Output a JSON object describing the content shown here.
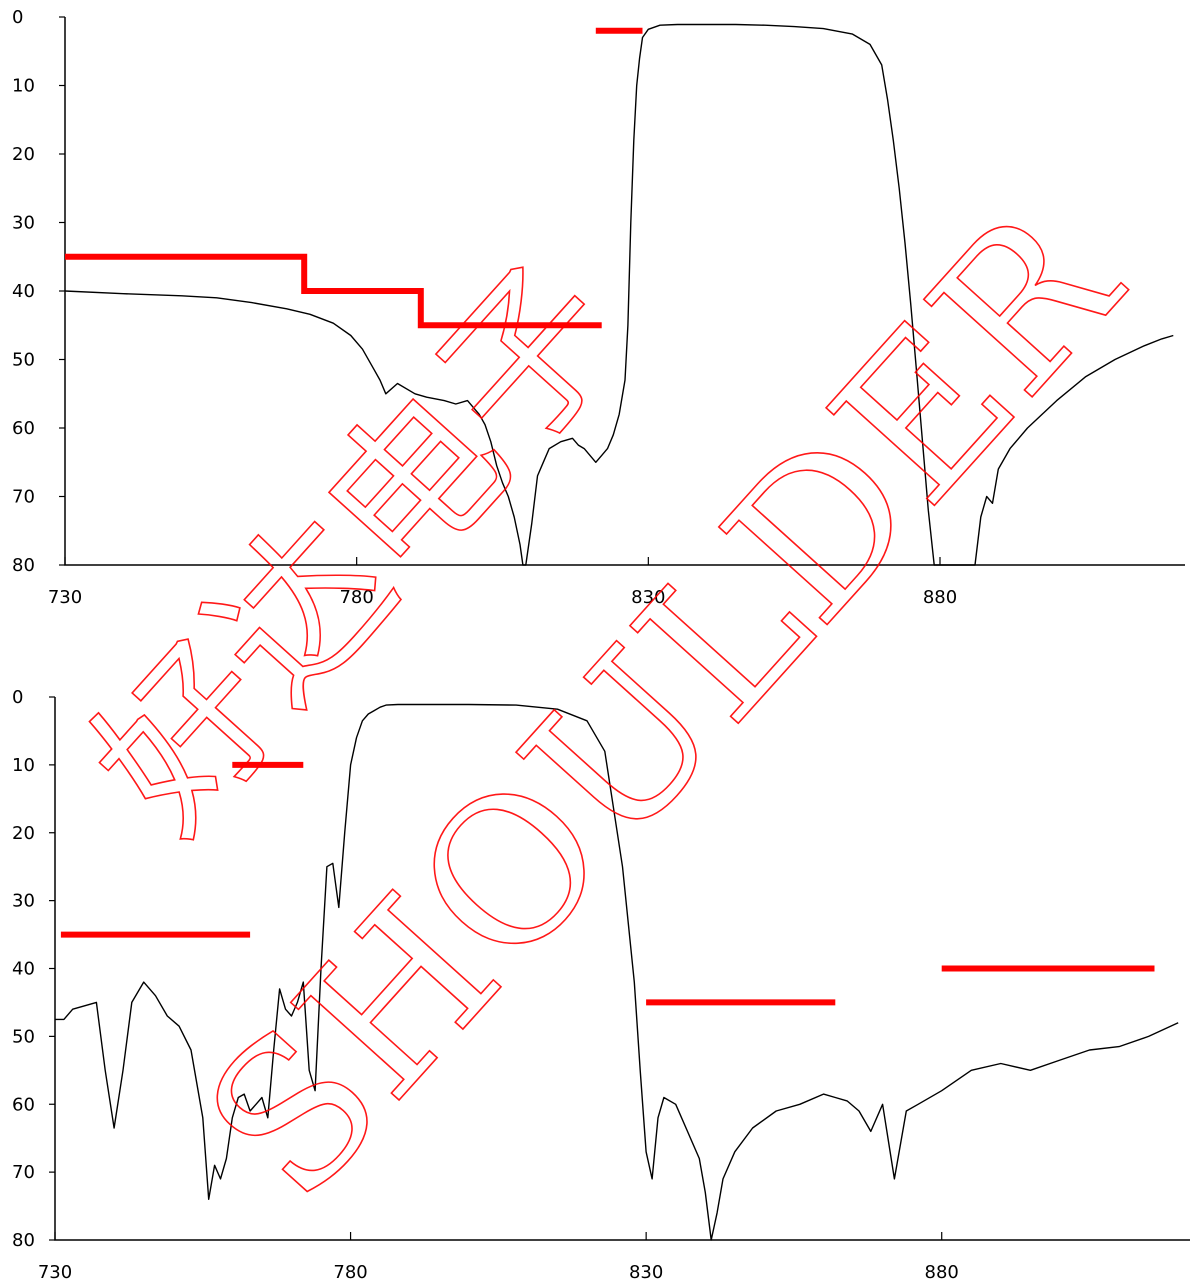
{
  "watermark": {
    "text_en": "SHOULDER",
    "text_zh": "好达电子",
    "color": "#ff0000"
  },
  "colors": {
    "measured": "#000000",
    "spec_mask": "#ff0000"
  },
  "chart_data": [
    {
      "type": "line",
      "title": "",
      "xlabel": "",
      "ylabel": "",
      "xlim": [
        730,
        922
      ],
      "ylim": [
        80,
        0
      ],
      "y_inverted": true,
      "xticks": [
        730,
        780,
        830,
        880
      ],
      "yticks": [
        0,
        10,
        20,
        30,
        40,
        50,
        60,
        70,
        80
      ],
      "grid": false,
      "legend": "none",
      "series": [
        {
          "kind": "measured",
          "x": [
            730,
            740,
            750,
            756,
            762,
            768,
            772,
            776,
            779,
            781,
            783,
            784,
            785,
            787,
            790,
            792,
            795,
            797,
            799,
            800,
            801,
            802,
            803,
            804,
            805,
            806,
            807,
            808,
            808.5,
            809,
            810,
            811,
            812,
            813,
            815,
            817,
            818,
            819,
            820,
            821,
            822,
            823,
            824,
            825,
            826,
            826.5,
            827,
            827.5,
            828,
            828.5,
            829,
            830,
            832,
            835,
            840,
            845,
            850,
            855,
            860,
            865,
            868,
            870,
            871,
            872,
            873,
            874,
            875,
            876,
            877,
            878,
            879,
            880,
            881,
            882,
            883,
            886,
            887,
            888,
            889,
            890,
            892,
            895,
            900,
            905,
            910,
            915,
            918,
            920
          ],
          "y": [
            40,
            40.4,
            40.7,
            41,
            41.7,
            42.6,
            43.4,
            44.7,
            46.5,
            48.5,
            51.5,
            53,
            55,
            53.5,
            55,
            55.5,
            56,
            56.5,
            56,
            57,
            58,
            59.5,
            62,
            65.5,
            68,
            70,
            73,
            77,
            80,
            80,
            74,
            67,
            65,
            63,
            62,
            61.5,
            62.5,
            63,
            64,
            65,
            64,
            63,
            61,
            58,
            53,
            45,
            30,
            18,
            10,
            6,
            3,
            1.8,
            1.2,
            1.1,
            1.1,
            1.1,
            1.2,
            1.4,
            1.7,
            2.5,
            4,
            7,
            12,
            18,
            25,
            33,
            42,
            52,
            62,
            72,
            80,
            80,
            80,
            80,
            80,
            80,
            73,
            70,
            71,
            66,
            63,
            60,
            56,
            52.5,
            50,
            48,
            47,
            46.5
          ]
        },
        {
          "kind": "spec_mask",
          "x": [
            730,
            771,
            771,
            791,
            791,
            822
          ],
          "y": [
            35,
            35,
            40,
            40,
            45,
            45
          ]
        },
        {
          "kind": "spec_mask",
          "x": [
            821,
            829
          ],
          "y": [
            2,
            2
          ]
        }
      ]
    },
    {
      "type": "line",
      "title": "",
      "xlabel": "",
      "ylabel": "",
      "xlim": [
        730,
        922
      ],
      "ylim": [
        80,
        0
      ],
      "y_inverted": true,
      "xticks": [
        730,
        780,
        830,
        880
      ],
      "yticks": [
        0,
        10,
        20,
        30,
        40,
        50,
        60,
        70,
        80
      ],
      "grid": false,
      "legend": "none",
      "series": [
        {
          "kind": "measured",
          "x": [
            730,
            731.5,
            733,
            735,
            737,
            738.5,
            740,
            741.5,
            743,
            745,
            747,
            749,
            751,
            753,
            755,
            756,
            757,
            758,
            759,
            760,
            761,
            762,
            763,
            764,
            765,
            766,
            767,
            768,
            769,
            770,
            771,
            772,
            773,
            774,
            775,
            776,
            777,
            778,
            779,
            780,
            781,
            782,
            783,
            784,
            785,
            786,
            788,
            790,
            800,
            808,
            815,
            820,
            823,
            826,
            828,
            829,
            830,
            831,
            832,
            833,
            835,
            837,
            839,
            840,
            841,
            842,
            843,
            845,
            848,
            852,
            856,
            860,
            862,
            864,
            866,
            868,
            870,
            872,
            874,
            876,
            880,
            885,
            890,
            895,
            900,
            905,
            910,
            915,
            920
          ],
          "y": [
            47.5,
            47.5,
            46,
            45.5,
            45,
            55,
            63.5,
            55,
            45,
            42,
            44,
            47,
            48.5,
            52,
            62,
            74,
            69,
            71,
            68,
            62,
            59,
            58.5,
            61,
            60,
            59,
            62,
            52,
            43,
            46,
            47,
            45,
            42,
            55,
            58,
            40,
            25,
            24.5,
            31,
            20,
            10,
            6,
            3.5,
            2.5,
            2,
            1.5,
            1.2,
            1.1,
            1.1,
            1.1,
            1.2,
            1.8,
            3.5,
            8,
            25,
            42,
            55,
            67,
            71,
            62,
            59,
            60,
            64,
            68,
            73,
            80,
            76,
            71,
            67,
            63.5,
            61,
            60,
            58.5,
            59,
            59.5,
            61,
            64,
            60,
            71,
            61,
            60,
            58,
            55,
            54,
            55,
            53.5,
            52,
            51.5,
            50,
            48
          ]
        },
        {
          "kind": "spec_mask",
          "x": [
            731,
            763
          ],
          "y": [
            35,
            35
          ]
        },
        {
          "kind": "spec_mask",
          "x": [
            760,
            772
          ],
          "y": [
            10,
            10
          ]
        },
        {
          "kind": "spec_mask",
          "x": [
            830,
            862
          ],
          "y": [
            45,
            45
          ]
        },
        {
          "kind": "spec_mask",
          "x": [
            880,
            916
          ],
          "y": [
            40,
            40
          ]
        }
      ]
    }
  ]
}
